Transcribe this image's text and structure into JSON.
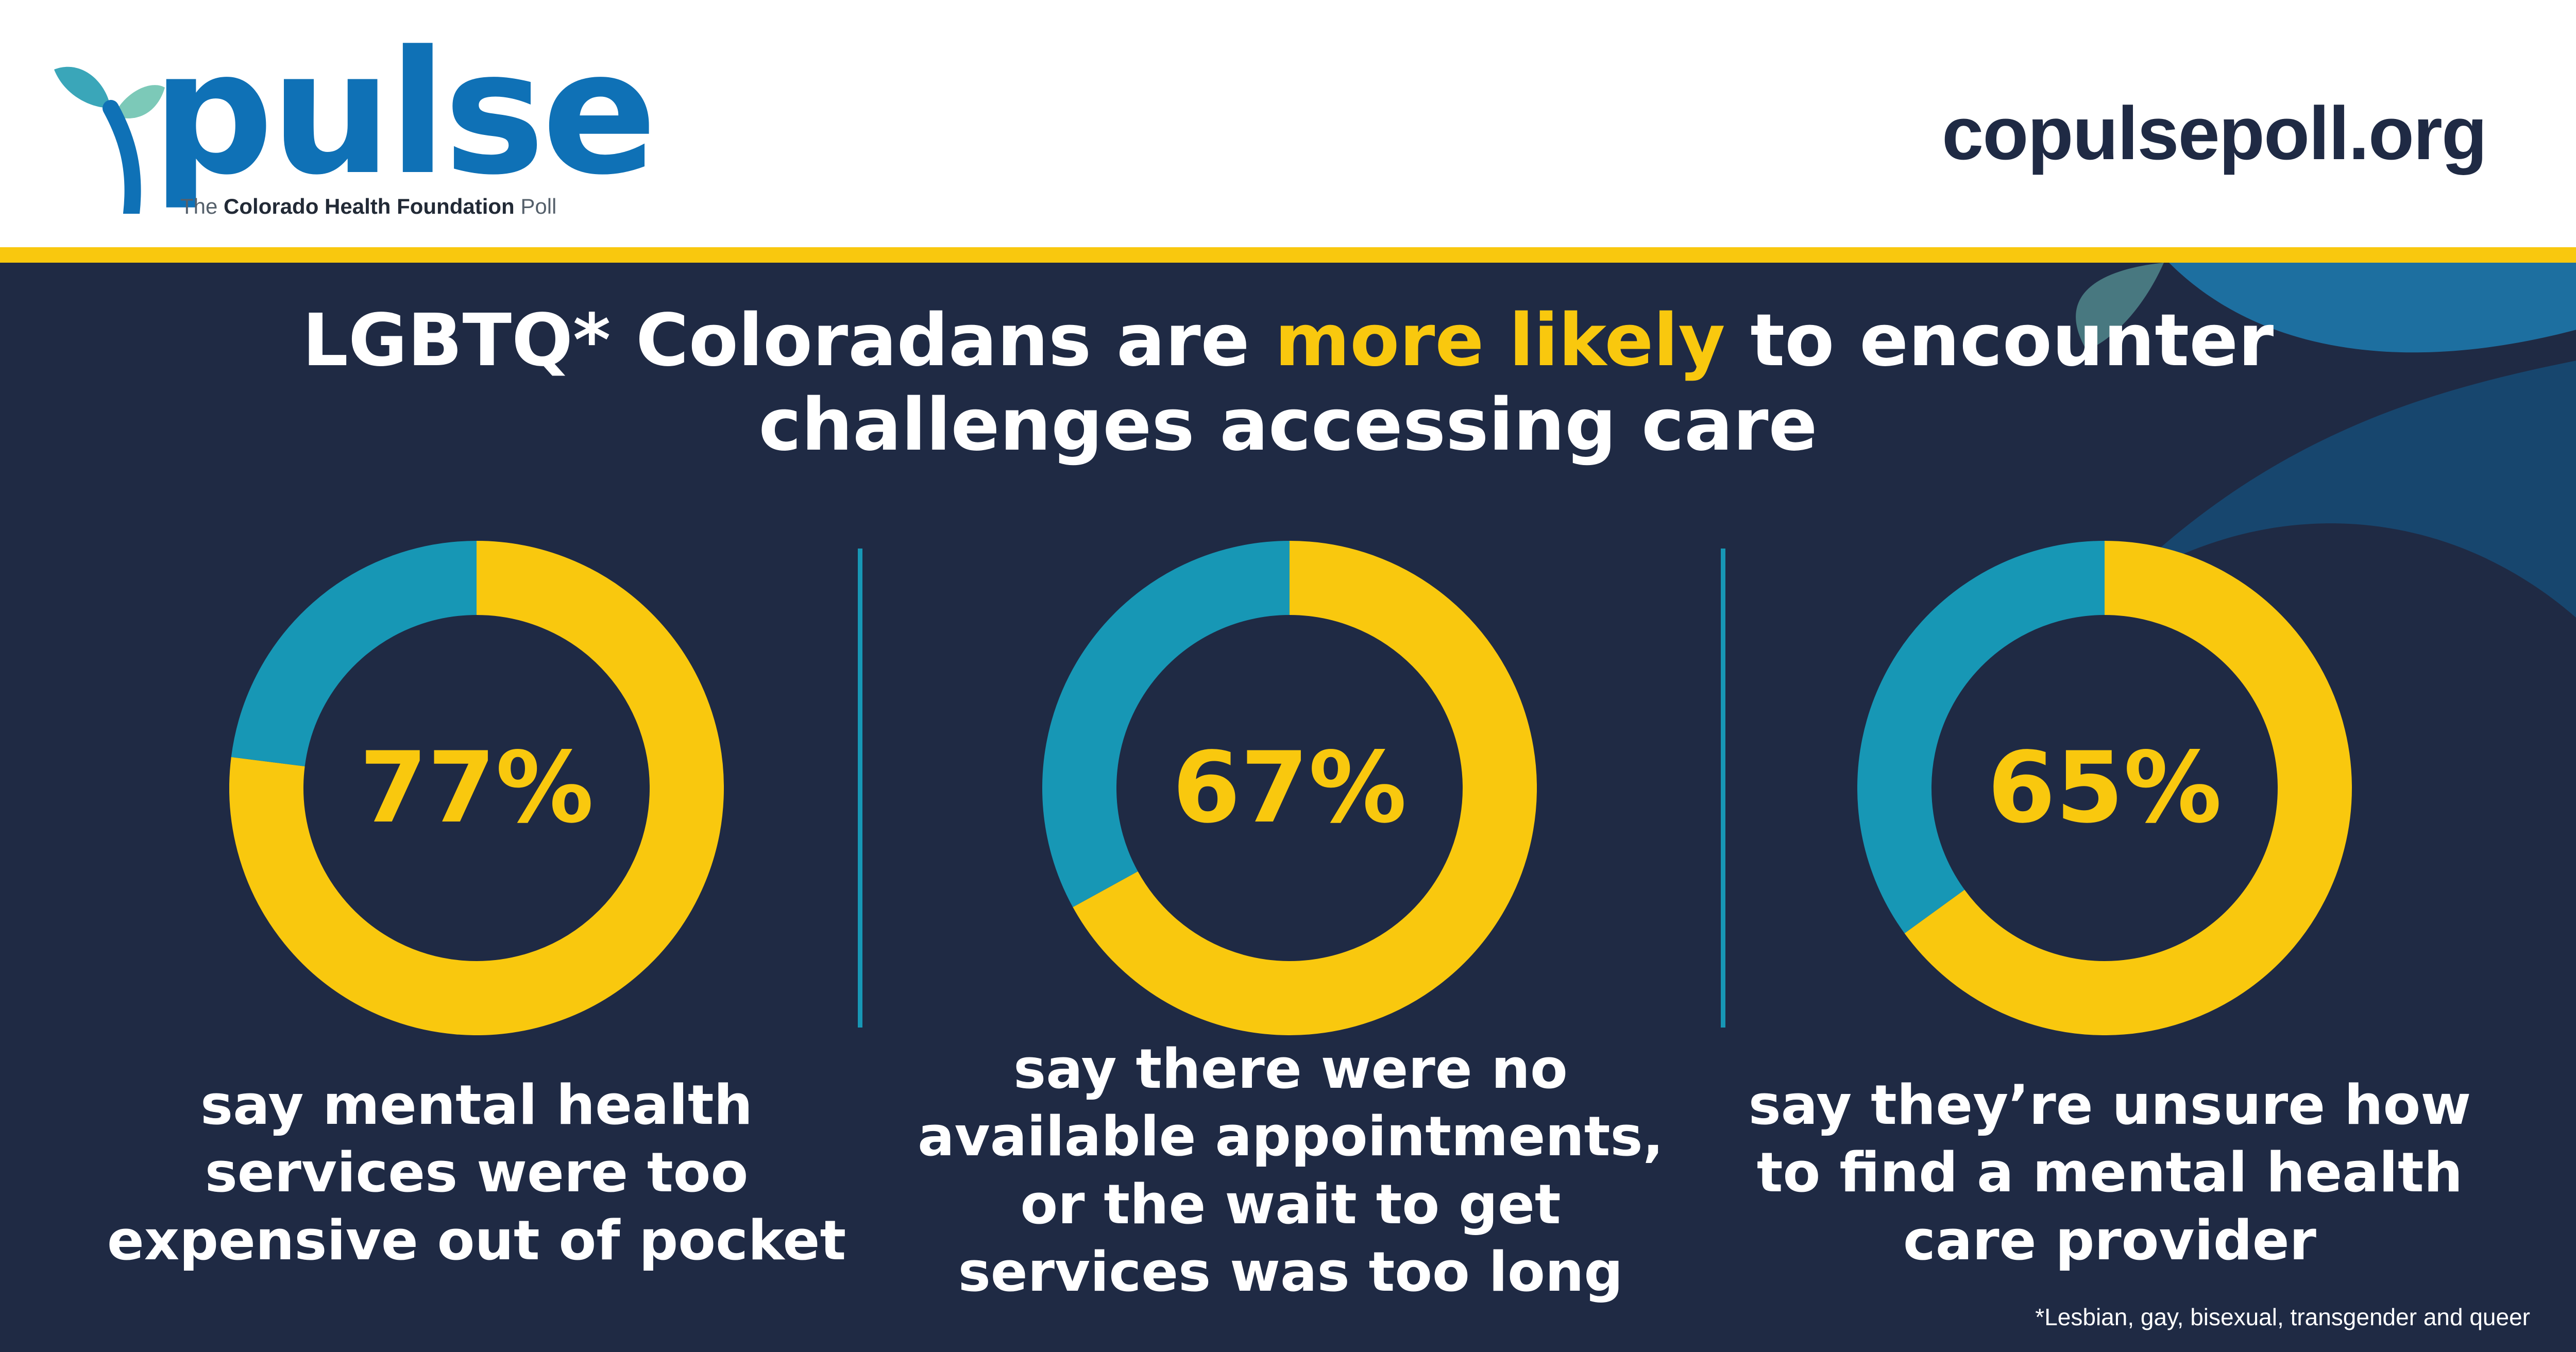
{
  "header": {
    "logo_word": "pulse",
    "logo_sub_bold": "Colorado Health Foundation",
    "logo_sub_pre": "The ",
    "logo_sub_post": " Poll",
    "site_url": "copulsepoll.org"
  },
  "headline": {
    "part1": "LGBTQ* Coloradans are ",
    "highlight": "more likely",
    "part2": " to encounter challenges accessing care"
  },
  "footnote": "*Lesbian, gay, bisexual, transgender and queer",
  "colors": {
    "navy": "#1f2a44",
    "gold": "#f9c80e",
    "teal": "#1797b5",
    "brand_blue": "#0f71b6"
  },
  "chart_data": [
    {
      "type": "pie",
      "values": [
        77,
        23
      ],
      "label": "77%",
      "caption": "say mental health services were too expensive out of pocket"
    },
    {
      "type": "pie",
      "values": [
        67,
        33
      ],
      "label": "67%",
      "caption": "say there were no available appointments, or the wait to get services was too long"
    },
    {
      "type": "pie",
      "values": [
        65,
        35
      ],
      "label": "65%",
      "caption": "say they’re unsure how to find a mental health care provider"
    }
  ]
}
